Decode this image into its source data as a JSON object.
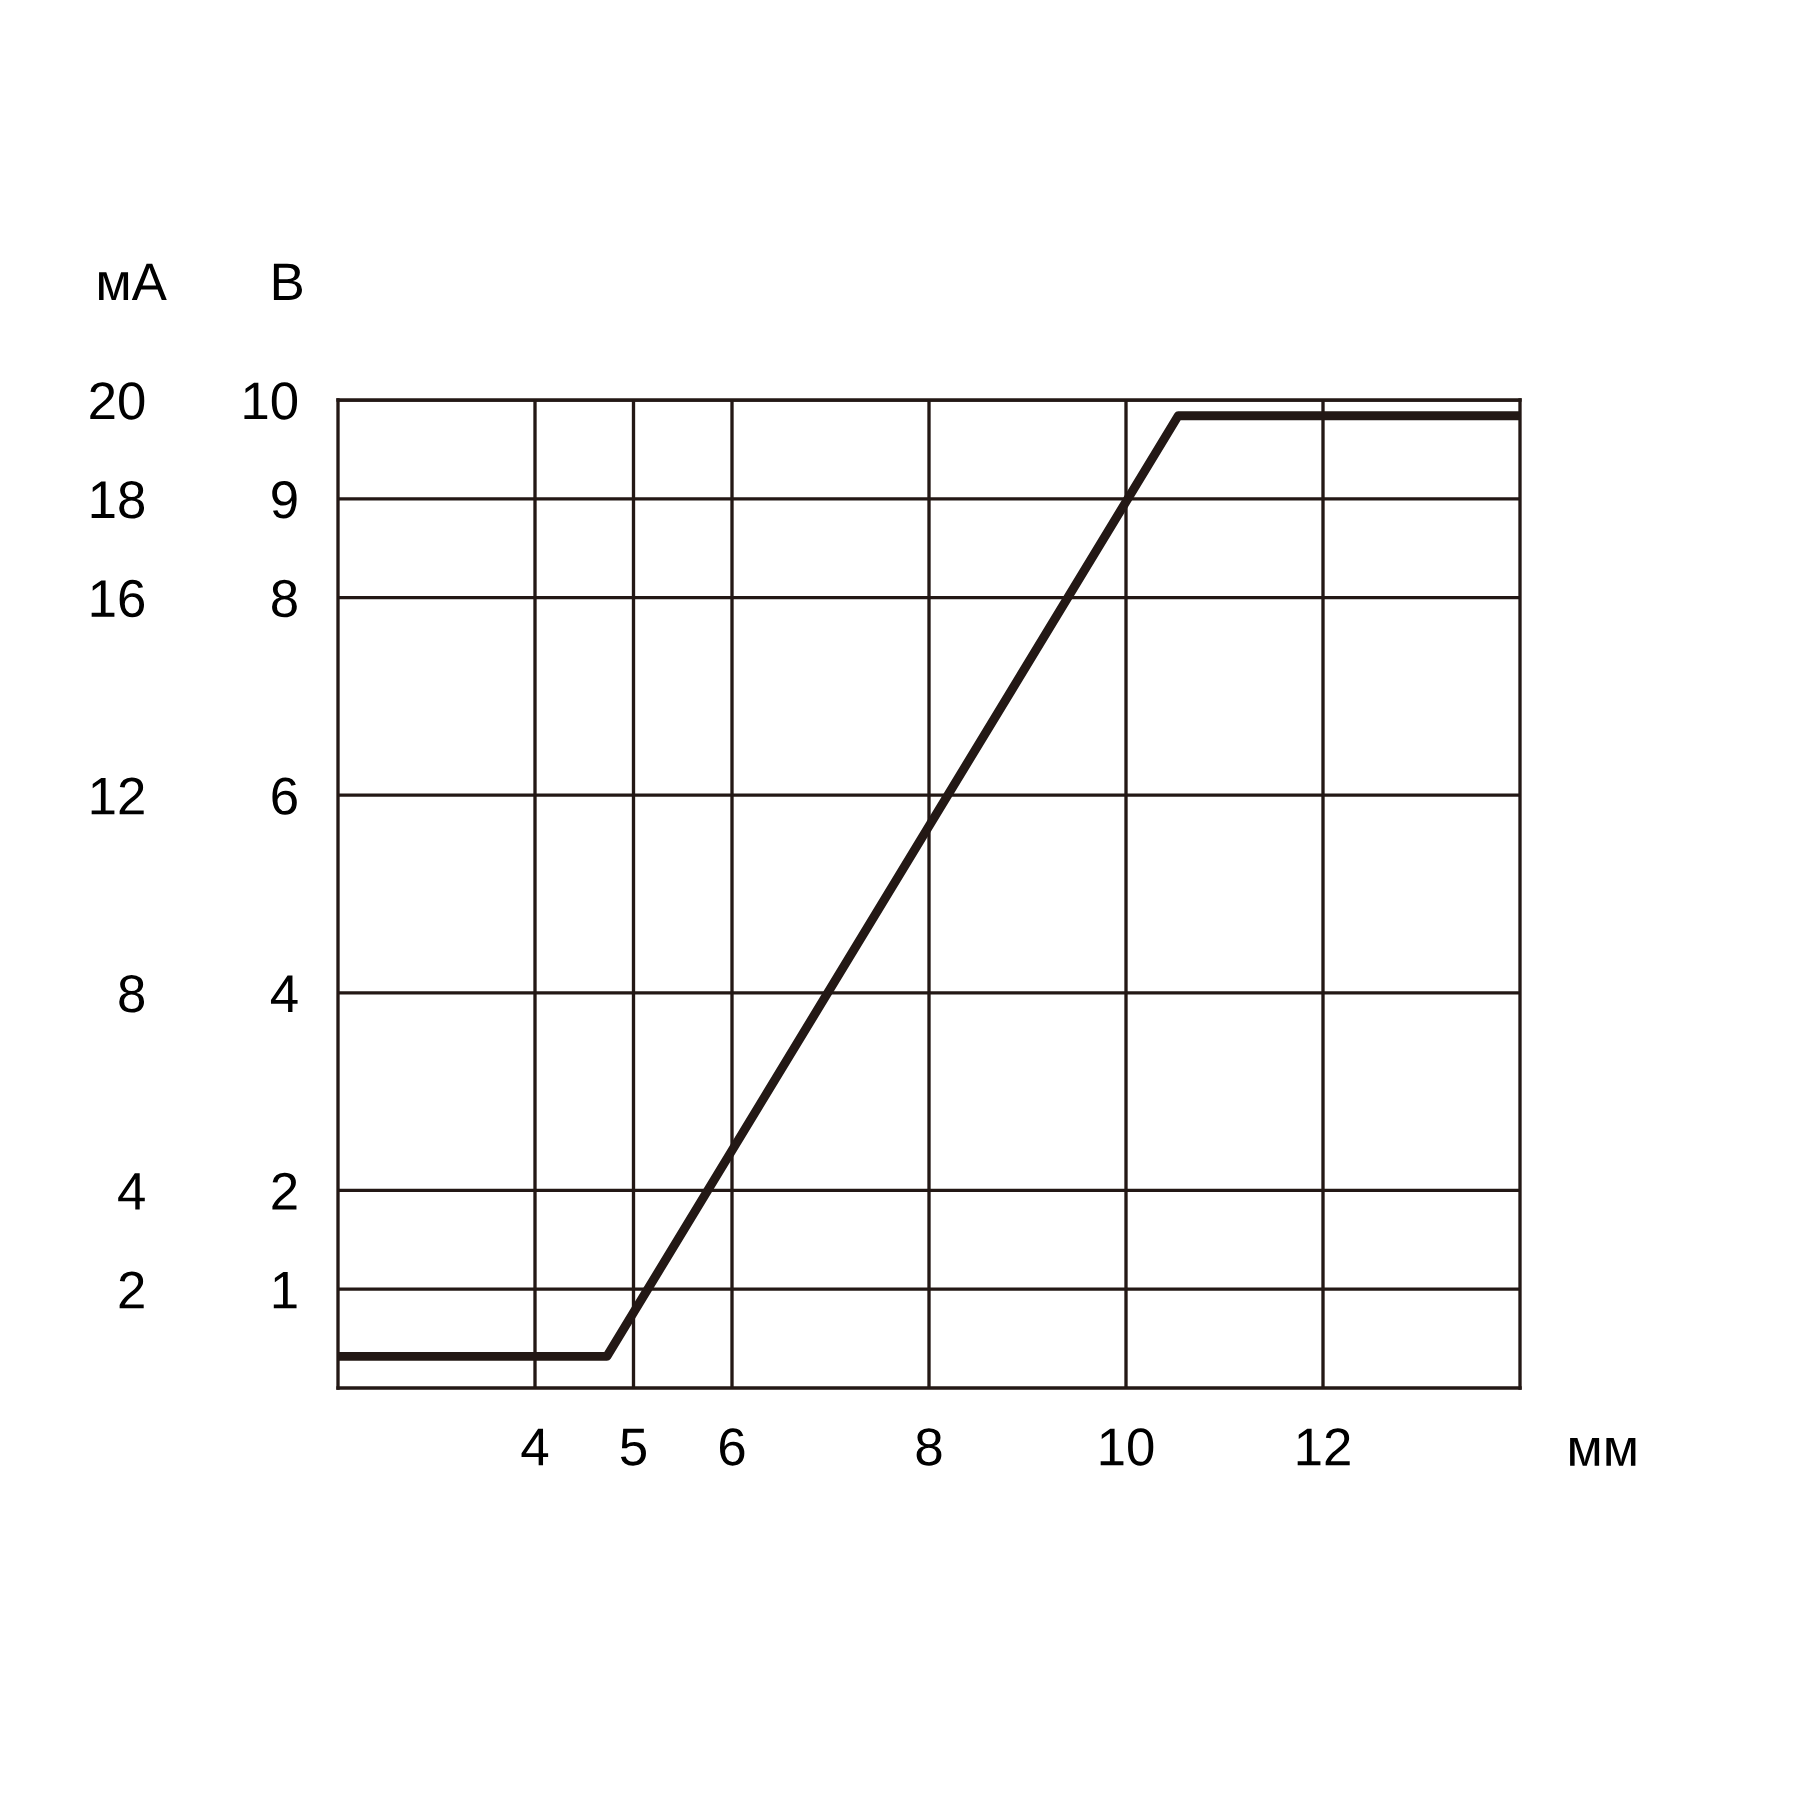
{
  "chart_data": {
    "type": "line",
    "xlabel": "мм",
    "ylabel": "В",
    "y2label": "мА",
    "series": [
      {
        "color": "#231815",
        "x": [
          2,
          4.73,
          10.53,
          14
        ],
        "values": [
          0.32,
          0.32,
          9.84,
          9.84
        ]
      }
    ],
    "xlim": [
      2,
      14
    ],
    "xticks": [
      4,
      5,
      6,
      8,
      10,
      12
    ],
    "ylim": [
      0,
      10
    ],
    "yticks": [
      1,
      2,
      4,
      6,
      8,
      9,
      10
    ],
    "y2lim": [
      0,
      20
    ],
    "y2ticks": [
      2,
      4,
      8,
      12,
      16,
      18,
      20
    ],
    "grid": true,
    "marker": "none",
    "line_style": "solid"
  }
}
